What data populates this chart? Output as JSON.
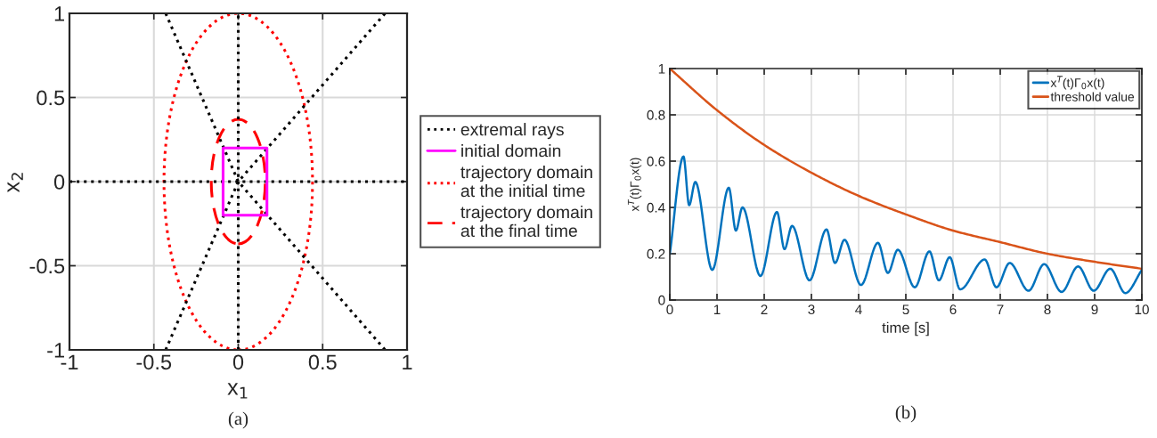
{
  "chart_data": [
    {
      "type": "line",
      "xlabel": "x$_{1}$",
      "ylabel": "x$_{2}$",
      "xlim": [
        -1,
        1
      ],
      "ylim": [
        -1,
        1
      ],
      "xticks": [
        -1,
        -0.5,
        0,
        0.5,
        1
      ],
      "yticks": [
        -1,
        -0.5,
        0,
        0.5,
        1
      ],
      "grid": true,
      "legend": "right",
      "annotations": [
        "(a)"
      ],
      "series": [
        {
          "name": "extremal rays",
          "color": "#000000",
          "line_style": "dotted",
          "x": [
            -0.43,
            0,
            0.87
          ],
          "values": [
            1,
            0,
            -1
          ]
        },
        {
          "color": "#000000",
          "line_style": "dotted",
          "x": [
            -0.43,
            0,
            0.87
          ],
          "values": [
            -1,
            0,
            1
          ]
        },
        {
          "color": "#000000",
          "line_style": "dotted",
          "x": [
            -1,
            -0.5,
            0,
            0.5,
            1
          ],
          "values": [
            0,
            0,
            0,
            0,
            0
          ]
        },
        {
          "name": "initial domain",
          "color": "#ff00ff",
          "line_style": "solid",
          "x": [
            -0.09,
            -0.09,
            0.17,
            0.17
          ],
          "values": [
            -0.2,
            0.2,
            0.2,
            -0.2
          ]
        },
        {
          "color": "#ff00ff",
          "line_style": "solid",
          "x": [
            -0.09,
            0.17
          ],
          "values": [
            -0.2,
            -0.2
          ]
        },
        {
          "name": "trajectory domain\nat the initial time",
          "color": "#ff0000",
          "line_style": "dotted"
        },
        {
          "name": "trajectory domain\nat the final time",
          "color": "#ff0000",
          "line_style": "dashed"
        }
      ],
      "ref_lines": [
        {
          "axis": "x",
          "value": 0,
          "color": "#000000",
          "line_style": "dotted"
        }
      ]
    },
    {
      "type": "line",
      "xlabel": "time [s]",
      "ylabel": "x$^{T}$(t)Γ$_{0}$x(t)",
      "xlim": [
        0,
        10
      ],
      "ylim": [
        0,
        1
      ],
      "xticks": [
        0,
        1,
        2,
        3,
        4,
        5,
        6,
        7,
        8,
        9,
        10
      ],
      "yticks": [
        0,
        0.2,
        0.4,
        0.6,
        0.8,
        1
      ],
      "grid": true,
      "legend": "top right",
      "annotations": [
        "(b)"
      ],
      "series": [
        {
          "name": "x$^{T}$(t)Γ$_{0}$x(t)",
          "color": "#0072bd",
          "line_style": "solid",
          "x": [
            0,
            0.29,
            0.41,
            0.54,
            0.9,
            1.25,
            1.4,
            1.54,
            1.92,
            2.27,
            2.43,
            2.59,
            2.96,
            3.32,
            3.5,
            3.7,
            4.05,
            4.41,
            4.62,
            4.83,
            5.19,
            5.5,
            5.7,
            5.93,
            6.15,
            6.67,
            6.92,
            7.2,
            7.6,
            7.93,
            8.3,
            8.65,
            8.98,
            9.33,
            9.65,
            10
          ],
          "values": [
            0.2,
            0.62,
            0.41,
            0.51,
            0.13,
            0.485,
            0.3,
            0.4,
            0.104,
            0.38,
            0.22,
            0.32,
            0.085,
            0.305,
            0.16,
            0.26,
            0.065,
            0.247,
            0.117,
            0.217,
            0.055,
            0.21,
            0.085,
            0.185,
            0.046,
            0.175,
            0.055,
            0.16,
            0.04,
            0.155,
            0.035,
            0.145,
            0.04,
            0.135,
            0.03,
            0.13
          ]
        },
        {
          "name": "threshold value",
          "color": "#d95319",
          "line_style": "solid",
          "x": [
            0,
            1,
            2,
            3,
            4,
            5,
            6,
            7,
            8,
            9,
            10
          ],
          "values": [
            1,
            0.82,
            0.67,
            0.55,
            0.45,
            0.37,
            0.3,
            0.25,
            0.2,
            0.165,
            0.135
          ]
        }
      ]
    }
  ]
}
